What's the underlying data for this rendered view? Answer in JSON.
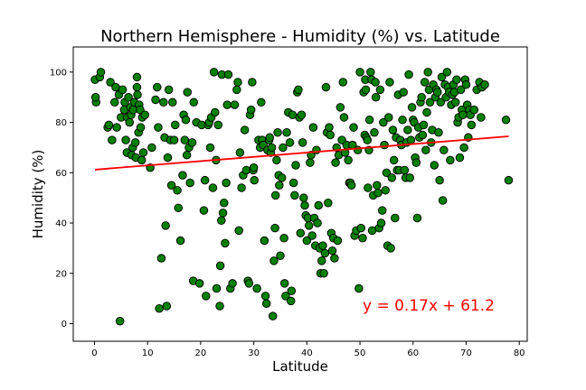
{
  "chart_data": {
    "type": "scatter",
    "title": "Northern Hemisphere - Humidity (%) vs. Latitude",
    "xlabel": "Latitude",
    "ylabel": "Humidity (%)",
    "xlim": [
      -4,
      81.5
    ],
    "ylim": [
      -7,
      110
    ],
    "xticks": [
      0,
      10,
      20,
      30,
      40,
      50,
      60,
      70,
      80
    ],
    "yticks": [
      0,
      20,
      40,
      60,
      80,
      100
    ],
    "grid": false,
    "marker_color": "#008000",
    "marker_edge_color": "#000000",
    "regression": {
      "slope": 0.17,
      "intercept": 61.2,
      "x_range": [
        0.1,
        78
      ],
      "color": "#ff0000",
      "label": "y = 0.17x + 61.2"
    },
    "points": [
      [
        0.1,
        97
      ],
      [
        0.3,
        88
      ],
      [
        0.2,
        90
      ],
      [
        1,
        98
      ],
      [
        1.2,
        100
      ],
      [
        2.5,
        78
      ],
      [
        2.7,
        79
      ],
      [
        3,
        96
      ],
      [
        3.3,
        73
      ],
      [
        3.8,
        88
      ],
      [
        4,
        94
      ],
      [
        4.2,
        78
      ],
      [
        4.6,
        91
      ],
      [
        4.8,
        1
      ],
      [
        5,
        82
      ],
      [
        5.3,
        93
      ],
      [
        5.6,
        85
      ],
      [
        5.7,
        88
      ],
      [
        5.9,
        73
      ],
      [
        6.1,
        68
      ],
      [
        6.2,
        82
      ],
      [
        6.4,
        90
      ],
      [
        6.6,
        80
      ],
      [
        6.8,
        86
      ],
      [
        6.9,
        83
      ],
      [
        7,
        67
      ],
      [
        7.2,
        70
      ],
      [
        7.3,
        85
      ],
      [
        7.5,
        88
      ],
      [
        7.7,
        72
      ],
      [
        7.8,
        66
      ],
      [
        8,
        94
      ],
      [
        8,
        98
      ],
      [
        8.1,
        91
      ],
      [
        8.3,
        76
      ],
      [
        8.4,
        87
      ],
      [
        8.6,
        85
      ],
      [
        8.7,
        78
      ],
      [
        8.9,
        65
      ],
      [
        9,
        82
      ],
      [
        9.2,
        68
      ],
      [
        9.5,
        83
      ],
      [
        10.5,
        62
      ],
      [
        10.8,
        70
      ],
      [
        11.5,
        89
      ],
      [
        11.8,
        94
      ],
      [
        12,
        78
      ],
      [
        12.2,
        6
      ],
      [
        12.6,
        26
      ],
      [
        13,
        88
      ],
      [
        13.2,
        74
      ],
      [
        13.4,
        39
      ],
      [
        13.6,
        7
      ],
      [
        13.8,
        66
      ],
      [
        14,
        93
      ],
      [
        14.3,
        73
      ],
      [
        14.5,
        55
      ],
      [
        14.7,
        88
      ],
      [
        15,
        73
      ],
      [
        15.2,
        79
      ],
      [
        15.6,
        53
      ],
      [
        15.8,
        46
      ],
      [
        16.2,
        33
      ],
      [
        16.6,
        59
      ],
      [
        16.8,
        83
      ],
      [
        17,
        73
      ],
      [
        17.2,
        81
      ],
      [
        17.4,
        67
      ],
      [
        17.5,
        92
      ],
      [
        17.8,
        70
      ],
      [
        18,
        56
      ],
      [
        18.4,
        72
      ],
      [
        18.6,
        17
      ],
      [
        18.7,
        88
      ],
      [
        19.2,
        80
      ],
      [
        19.8,
        16
      ],
      [
        20.2,
        79
      ],
      [
        20.6,
        45
      ],
      [
        20.8,
        57
      ],
      [
        21,
        11
      ],
      [
        21.4,
        79
      ],
      [
        21.6,
        80
      ],
      [
        21.8,
        70
      ],
      [
        22,
        82
      ],
      [
        22.3,
        54
      ],
      [
        22.5,
        100
      ],
      [
        22.7,
        84
      ],
      [
        22.9,
        65
      ],
      [
        23,
        14
      ],
      [
        23.3,
        79
      ],
      [
        23.6,
        7
      ],
      [
        23.7,
        23
      ],
      [
        23.9,
        41
      ],
      [
        24,
        99
      ],
      [
        24.2,
        44
      ],
      [
        24.4,
        48
      ],
      [
        24.6,
        32
      ],
      [
        24.8,
        56
      ],
      [
        25,
        87
      ],
      [
        25.2,
        99
      ],
      [
        25.6,
        14
      ],
      [
        26,
        16
      ],
      [
        26.4,
        87
      ],
      [
        26.8,
        93
      ],
      [
        27,
        96
      ],
      [
        27.2,
        37
      ],
      [
        27.4,
        68
      ],
      [
        27.7,
        54
      ],
      [
        28,
        59
      ],
      [
        28.3,
        77
      ],
      [
        28.6,
        61
      ],
      [
        28.9,
        17
      ],
      [
        29.1,
        16
      ],
      [
        29.3,
        83
      ],
      [
        29.5,
        85
      ],
      [
        29.7,
        96
      ],
      [
        29.9,
        61
      ],
      [
        30,
        62
      ],
      [
        30.1,
        57
      ],
      [
        30.6,
        14
      ],
      [
        30.9,
        73
      ],
      [
        31.2,
        70
      ],
      [
        31.4,
        88
      ],
      [
        31.6,
        73
      ],
      [
        31.8,
        71
      ],
      [
        32,
        33
      ],
      [
        32.2,
        11
      ],
      [
        32.4,
        8
      ],
      [
        32.6,
        69
      ],
      [
        32.9,
        73
      ],
      [
        33,
        74
      ],
      [
        33.2,
        68
      ],
      [
        33.4,
        70
      ],
      [
        33.6,
        3
      ],
      [
        33.8,
        25
      ],
      [
        34,
        38
      ],
      [
        34.1,
        51
      ],
      [
        34.3,
        65
      ],
      [
        34.5,
        76
      ],
      [
        34.7,
        59
      ],
      [
        34.8,
        55
      ],
      [
        35,
        27
      ],
      [
        35.3,
        58
      ],
      [
        35.5,
        70
      ],
      [
        35.7,
        34
      ],
      [
        35.8,
        16
      ],
      [
        36,
        11
      ],
      [
        36.2,
        76
      ],
      [
        36.5,
        84
      ],
      [
        36.8,
        72
      ],
      [
        37,
        9
      ],
      [
        37.1,
        13
      ],
      [
        37.3,
        83
      ],
      [
        37.5,
        56
      ],
      [
        37.7,
        51
      ],
      [
        37.9,
        63
      ],
      [
        38.2,
        92
      ],
      [
        38.4,
        93
      ],
      [
        38.6,
        82
      ],
      [
        38.8,
        36
      ],
      [
        39,
        83
      ],
      [
        39.2,
        72
      ],
      [
        39.4,
        50
      ],
      [
        39.6,
        47
      ],
      [
        39.8,
        43
      ],
      [
        40,
        33
      ],
      [
        40.2,
        42
      ],
      [
        40.4,
        39
      ],
      [
        40.6,
        64
      ],
      [
        40.8,
        67
      ],
      [
        41,
        35
      ],
      [
        41.2,
        78
      ],
      [
        41.4,
        42
      ],
      [
        41.6,
        31
      ],
      [
        41.8,
        69
      ],
      [
        42,
        40
      ],
      [
        42.2,
        47
      ],
      [
        42.4,
        30
      ],
      [
        42.6,
        20
      ],
      [
        42.8,
        25
      ],
      [
        43,
        31
      ],
      [
        43.2,
        20
      ],
      [
        43.4,
        28
      ],
      [
        43.6,
        94
      ],
      [
        43.8,
        76
      ],
      [
        44,
        48
      ],
      [
        44.2,
        78
      ],
      [
        44.4,
        75
      ],
      [
        44.6,
        36
      ],
      [
        44.8,
        29
      ],
      [
        45,
        34
      ],
      [
        45.2,
        26
      ],
      [
        45.4,
        64
      ],
      [
        45.6,
        70
      ],
      [
        45.8,
        33
      ],
      [
        46,
        67
      ],
      [
        46.3,
        86
      ],
      [
        46.6,
        73
      ],
      [
        46.8,
        96
      ],
      [
        47,
        82
      ],
      [
        47.2,
        68
      ],
      [
        47.5,
        71
      ],
      [
        47.8,
        65
      ],
      [
        48,
        56
      ],
      [
        48.2,
        56
      ],
      [
        48.4,
        55
      ],
      [
        48.6,
        71
      ],
      [
        48.8,
        78
      ],
      [
        49,
        35
      ],
      [
        49.3,
        37
      ],
      [
        49.6,
        69
      ],
      [
        49.8,
        14
      ],
      [
        50,
        100
      ],
      [
        50.2,
        38
      ],
      [
        50.5,
        34
      ],
      [
        50.7,
        92
      ],
      [
        50.9,
        75
      ],
      [
        51,
        97
      ],
      [
        51.1,
        93
      ],
      [
        51.2,
        74
      ],
      [
        51.4,
        73
      ],
      [
        51.5,
        54
      ],
      [
        51.7,
        69
      ],
      [
        51.8,
        81
      ],
      [
        52,
        100
      ],
      [
        52.2,
        97
      ],
      [
        52.3,
        37
      ],
      [
        52.5,
        51
      ],
      [
        52.7,
        76
      ],
      [
        52.9,
        96
      ],
      [
        53,
        90
      ],
      [
        53.2,
        55
      ],
      [
        53.4,
        52
      ],
      [
        53.6,
        38
      ],
      [
        53.8,
        93
      ],
      [
        54,
        40
      ],
      [
        54.2,
        45
      ],
      [
        54.4,
        80
      ],
      [
        54.6,
        71
      ],
      [
        54.8,
        53
      ],
      [
        55,
        60
      ],
      [
        55.2,
        31
      ],
      [
        55.4,
        82
      ],
      [
        55.6,
        96
      ],
      [
        55.8,
        30
      ],
      [
        56,
        58
      ],
      [
        56.2,
        77
      ],
      [
        56.4,
        65
      ],
      [
        56.6,
        42
      ],
      [
        56.8,
        74
      ],
      [
        57,
        61
      ],
      [
        57.2,
        91
      ],
      [
        57.4,
        61
      ],
      [
        57.6,
        73
      ],
      [
        57.8,
        71
      ],
      [
        58,
        81
      ],
      [
        58.2,
        92
      ],
      [
        58.4,
        61
      ],
      [
        58.6,
        58
      ],
      [
        58.8,
        72
      ],
      [
        59,
        77
      ],
      [
        59.2,
        99
      ],
      [
        59.4,
        58
      ],
      [
        59.6,
        73
      ],
      [
        59.8,
        86
      ],
      [
        60,
        81
      ],
      [
        60.2,
        80
      ],
      [
        60.4,
        66
      ],
      [
        60.6,
        64
      ],
      [
        60.8,
        42
      ],
      [
        61,
        78
      ],
      [
        61.2,
        74
      ],
      [
        61.4,
        88
      ],
      [
        61.6,
        90
      ],
      [
        61.8,
        75
      ],
      [
        62,
        79
      ],
      [
        62.2,
        96
      ],
      [
        62.4,
        69
      ],
      [
        62.6,
        84
      ],
      [
        62.8,
        100
      ],
      [
        63,
        93
      ],
      [
        63.2,
        88
      ],
      [
        63.4,
        72
      ],
      [
        63.6,
        77
      ],
      [
        63.8,
        95
      ],
      [
        64,
        63
      ],
      [
        64.2,
        90
      ],
      [
        64.4,
        93
      ],
      [
        64.6,
        92
      ],
      [
        64.8,
        76
      ],
      [
        65,
        57
      ],
      [
        65.2,
        88
      ],
      [
        65.4,
        98
      ],
      [
        65.6,
        49
      ],
      [
        65.8,
        69
      ],
      [
        66,
        95
      ],
      [
        66.2,
        90
      ],
      [
        66.4,
        100
      ],
      [
        66.6,
        94
      ],
      [
        66.8,
        92
      ],
      [
        67,
        65
      ],
      [
        67.2,
        87
      ],
      [
        67.4,
        91
      ],
      [
        67.6,
        95
      ],
      [
        67.8,
        92
      ],
      [
        68,
        88
      ],
      [
        68.2,
        97
      ],
      [
        68.4,
        80
      ],
      [
        68.6,
        82
      ],
      [
        68.8,
        66
      ],
      [
        69,
        93
      ],
      [
        69.2,
        85
      ],
      [
        69.4,
        83
      ],
      [
        69.6,
        70
      ],
      [
        69.8,
        97
      ],
      [
        70,
        95
      ],
      [
        70.2,
        87
      ],
      [
        70.4,
        74
      ],
      [
        70.6,
        85
      ],
      [
        70.8,
        83
      ],
      [
        71,
        79
      ],
      [
        71.5,
        85
      ],
      [
        72,
        93
      ],
      [
        72.5,
        96
      ],
      [
        73,
        94
      ],
      [
        73.5,
        95
      ],
      [
        72.8,
        82
      ],
      [
        77.5,
        81
      ],
      [
        78,
        57
      ]
    ]
  }
}
